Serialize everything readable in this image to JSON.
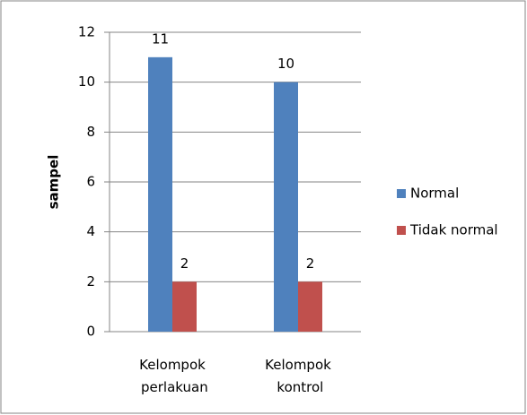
{
  "chart_data": {
    "type": "bar",
    "y_label": "sampel",
    "categories": [
      "Kelompok perlakuan",
      "Kelompok kontrol"
    ],
    "series": [
      {
        "name": "Normal",
        "color": "#4f81bd",
        "values": [
          11,
          10
        ]
      },
      {
        "name": "Tidak normal",
        "color": "#c0504d",
        "values": [
          2,
          2
        ]
      }
    ],
    "ylim": [
      0,
      12
    ],
    "yticks": [
      0,
      2,
      4,
      6,
      8,
      10,
      12
    ],
    "grid": true,
    "legend": "right"
  }
}
